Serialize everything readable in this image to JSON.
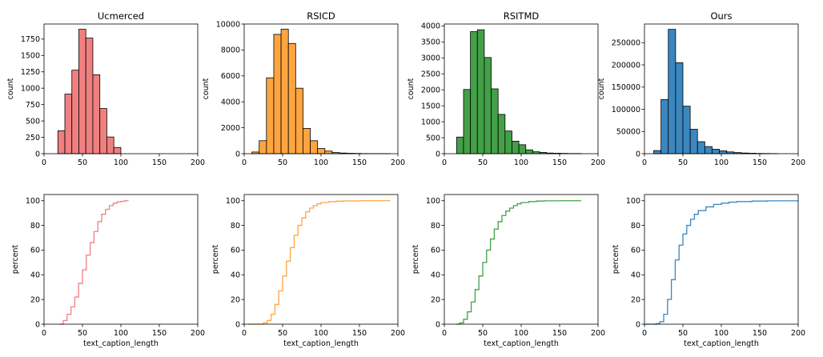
{
  "chart_data": [
    {
      "type": "histogram",
      "title": "Ucmerced",
      "xlabel": "",
      "ylabel": "count",
      "color": "#F08080",
      "xlim": [
        0,
        200
      ],
      "ylim": [
        0,
        1980
      ],
      "xticks": [
        0,
        50,
        100,
        150,
        200
      ],
      "yticks": [
        0,
        250,
        500,
        750,
        1000,
        1250,
        1500,
        1750
      ],
      "ytick_labels": [
        "0",
        "250",
        "500",
        "750",
        "1000",
        "1250",
        "1500",
        "1750"
      ],
      "bins": [
        {
          "x0": 18,
          "x1": 27.1,
          "count": 350
        },
        {
          "x0": 27.1,
          "x1": 36.2,
          "count": 910
        },
        {
          "x0": 36.2,
          "x1": 45.3,
          "count": 1275
        },
        {
          "x0": 45.3,
          "x1": 54.4,
          "count": 1900
        },
        {
          "x0": 54.4,
          "x1": 63.5,
          "count": 1765
        },
        {
          "x0": 63.5,
          "x1": 72.6,
          "count": 1205
        },
        {
          "x0": 72.6,
          "x1": 81.7,
          "count": 690
        },
        {
          "x0": 81.7,
          "x1": 90.8,
          "count": 255
        },
        {
          "x0": 90.8,
          "x1": 99.9,
          "count": 95
        }
      ]
    },
    {
      "type": "histogram",
      "title": "RSICD",
      "xlabel": "",
      "ylabel": "count",
      "color": "#FFA540",
      "xlim": [
        0,
        200
      ],
      "ylim": [
        0,
        10000
      ],
      "xticks": [
        0,
        50,
        100,
        150,
        200
      ],
      "yticks": [
        0,
        2000,
        4000,
        6000,
        8000,
        10000
      ],
      "ytick_labels": [
        "0",
        "2000",
        "4000",
        "6000",
        "8000",
        "10000"
      ],
      "bins": [
        {
          "x0": 10,
          "x1": 19.5,
          "count": 130
        },
        {
          "x0": 19.5,
          "x1": 29,
          "count": 1000
        },
        {
          "x0": 29,
          "x1": 38.5,
          "count": 5850
        },
        {
          "x0": 38.5,
          "x1": 48,
          "count": 9200
        },
        {
          "x0": 48,
          "x1": 57.5,
          "count": 9600
        },
        {
          "x0": 57.5,
          "x1": 67,
          "count": 8500
        },
        {
          "x0": 67,
          "x1": 76.5,
          "count": 5050
        },
        {
          "x0": 76.5,
          "x1": 86,
          "count": 1950
        },
        {
          "x0": 86,
          "x1": 95.5,
          "count": 1000
        },
        {
          "x0": 95.5,
          "x1": 105,
          "count": 400
        },
        {
          "x0": 105,
          "x1": 114.5,
          "count": 200
        },
        {
          "x0": 114.5,
          "x1": 124,
          "count": 90
        },
        {
          "x0": 124,
          "x1": 133.5,
          "count": 50
        },
        {
          "x0": 133.5,
          "x1": 143,
          "count": 30
        },
        {
          "x0": 143,
          "x1": 152.5,
          "count": 20
        },
        {
          "x0": 152.5,
          "x1": 162,
          "count": 10
        },
        {
          "x0": 162,
          "x1": 171.5,
          "count": 5
        },
        {
          "x0": 171.5,
          "x1": 181,
          "count": 5
        },
        {
          "x0": 181,
          "x1": 190.5,
          "count": 5
        }
      ]
    },
    {
      "type": "histogram",
      "title": "RSITMD",
      "xlabel": "",
      "ylabel": "count",
      "color": "#43A047",
      "xlim": [
        0,
        200
      ],
      "ylim": [
        0,
        4060
      ],
      "xticks": [
        0,
        50,
        100,
        150,
        200
      ],
      "yticks": [
        0,
        500,
        1000,
        1500,
        2000,
        2500,
        3000,
        3500,
        4000
      ],
      "ytick_labels": [
        "0",
        "500",
        "1000",
        "1500",
        "2000",
        "2500",
        "3000",
        "3500",
        "4000"
      ],
      "bins": [
        {
          "x0": 16,
          "x1": 25,
          "count": 520
        },
        {
          "x0": 25,
          "x1": 34,
          "count": 2010
        },
        {
          "x0": 34,
          "x1": 43,
          "count": 3820
        },
        {
          "x0": 43,
          "x1": 52,
          "count": 3880
        },
        {
          "x0": 52,
          "x1": 61,
          "count": 3010
        },
        {
          "x0": 61,
          "x1": 70,
          "count": 2030
        },
        {
          "x0": 70,
          "x1": 79,
          "count": 1230
        },
        {
          "x0": 79,
          "x1": 88,
          "count": 710
        },
        {
          "x0": 88,
          "x1": 97,
          "count": 390
        },
        {
          "x0": 97,
          "x1": 106,
          "count": 280
        },
        {
          "x0": 106,
          "x1": 115,
          "count": 120
        },
        {
          "x0": 115,
          "x1": 124,
          "count": 60
        },
        {
          "x0": 124,
          "x1": 133,
          "count": 40
        },
        {
          "x0": 133,
          "x1": 142,
          "count": 20
        },
        {
          "x0": 142,
          "x1": 151,
          "count": 15
        },
        {
          "x0": 151,
          "x1": 160,
          "count": 10
        },
        {
          "x0": 160,
          "x1": 169,
          "count": 5
        },
        {
          "x0": 169,
          "x1": 178,
          "count": 5
        }
      ]
    },
    {
      "type": "histogram",
      "title": "Ours",
      "xlabel": "",
      "ylabel": "count",
      "color": "#3B87C0",
      "xlim": [
        0,
        200
      ],
      "ylim": [
        0,
        292000
      ],
      "xticks": [
        0,
        50,
        100,
        150,
        200
      ],
      "yticks": [
        0,
        50000,
        100000,
        150000,
        200000,
        250000
      ],
      "ytick_labels": [
        "0",
        "50000",
        "100000",
        "150000",
        "200000",
        "250000"
      ],
      "bins": [
        {
          "x0": 12,
          "x1": 21.5,
          "count": 7000
        },
        {
          "x0": 21.5,
          "x1": 31,
          "count": 122000
        },
        {
          "x0": 31,
          "x1": 40.5,
          "count": 280000
        },
        {
          "x0": 40.5,
          "x1": 50,
          "count": 205000
        },
        {
          "x0": 50,
          "x1": 59.5,
          "count": 107000
        },
        {
          "x0": 59.5,
          "x1": 69,
          "count": 55000
        },
        {
          "x0": 69,
          "x1": 78.5,
          "count": 27000
        },
        {
          "x0": 78.5,
          "x1": 88,
          "count": 16000
        },
        {
          "x0": 88,
          "x1": 97.5,
          "count": 10000
        },
        {
          "x0": 97.5,
          "x1": 107,
          "count": 6500
        },
        {
          "x0": 107,
          "x1": 116.5,
          "count": 4000
        },
        {
          "x0": 116.5,
          "x1": 126,
          "count": 2500
        },
        {
          "x0": 126,
          "x1": 135.5,
          "count": 1500
        },
        {
          "x0": 135.5,
          "x1": 145,
          "count": 1000
        },
        {
          "x0": 145,
          "x1": 154.5,
          "count": 600
        },
        {
          "x0": 154.5,
          "x1": 164,
          "count": 400
        },
        {
          "x0": 164,
          "x1": 173.5,
          "count": 200
        }
      ]
    },
    {
      "type": "line",
      "subtype": "cumulative-step",
      "title": "",
      "xlabel": "text_caption_length",
      "ylabel": "percent",
      "color": "#F08080",
      "xlim": [
        0,
        200
      ],
      "ylim": [
        0,
        105
      ],
      "xticks": [
        0,
        50,
        100,
        150,
        200
      ],
      "yticks": [
        0,
        20,
        40,
        60,
        80,
        100
      ],
      "ytick_labels": [
        "0",
        "20",
        "40",
        "60",
        "80",
        "100"
      ],
      "x": [
        20,
        25,
        30,
        35,
        40,
        45,
        50,
        55,
        60,
        65,
        70,
        75,
        80,
        85,
        90,
        95,
        100,
        105,
        110
      ],
      "y": [
        0,
        3,
        8,
        14,
        22,
        33,
        44,
        56,
        66,
        75,
        83,
        89,
        93,
        96,
        98,
        99,
        99.5,
        100,
        100
      ]
    },
    {
      "type": "line",
      "subtype": "cumulative-step",
      "title": "",
      "xlabel": "text_caption_length",
      "ylabel": "percent",
      "color": "#FFA540",
      "xlim": [
        0,
        200
      ],
      "ylim": [
        0,
        105
      ],
      "xticks": [
        0,
        50,
        100,
        150,
        200
      ],
      "yticks": [
        0,
        20,
        40,
        60,
        80,
        100
      ],
      "ytick_labels": [
        "0",
        "20",
        "40",
        "60",
        "80",
        "100"
      ],
      "x": [
        5,
        20,
        25,
        30,
        35,
        40,
        45,
        50,
        55,
        60,
        65,
        70,
        75,
        80,
        85,
        90,
        95,
        100,
        110,
        120,
        130,
        150,
        190
      ],
      "y": [
        0,
        0,
        1,
        3,
        8,
        16,
        27,
        39,
        51,
        62,
        72,
        80,
        86,
        91,
        94,
        96,
        97.5,
        98.5,
        99.2,
        99.6,
        99.8,
        100,
        100
      ]
    },
    {
      "type": "line",
      "subtype": "cumulative-step",
      "title": "",
      "xlabel": "text_caption_length",
      "ylabel": "percent",
      "color": "#43A047",
      "xlim": [
        0,
        200
      ],
      "ylim": [
        0,
        105
      ],
      "xticks": [
        0,
        50,
        100,
        150,
        200
      ],
      "yticks": [
        0,
        20,
        40,
        60,
        80,
        100
      ],
      "ytick_labels": [
        "0",
        "20",
        "40",
        "60",
        "80",
        "100"
      ],
      "x": [
        15,
        20,
        25,
        30,
        35,
        40,
        45,
        50,
        55,
        60,
        65,
        70,
        75,
        80,
        85,
        90,
        95,
        100,
        110,
        120,
        130,
        150,
        178
      ],
      "y": [
        0,
        1,
        4,
        10,
        18,
        28,
        39,
        50,
        60,
        69,
        77,
        83,
        88,
        91.5,
        94,
        96,
        97.5,
        98.5,
        99.3,
        99.7,
        99.9,
        100,
        100
      ]
    },
    {
      "type": "line",
      "subtype": "cumulative-step",
      "title": "",
      "xlabel": "text_caption_length",
      "ylabel": "percent",
      "color": "#3B87C0",
      "xlim": [
        0,
        200
      ],
      "ylim": [
        0,
        105
      ],
      "xticks": [
        0,
        50,
        100,
        150,
        200
      ],
      "yticks": [
        0,
        20,
        40,
        60,
        80,
        100
      ],
      "ytick_labels": [
        "0",
        "20",
        "40",
        "60",
        "80",
        "100"
      ],
      "x": [
        0,
        10,
        15,
        20,
        25,
        30,
        35,
        40,
        45,
        50,
        55,
        60,
        65,
        70,
        80,
        90,
        100,
        110,
        120,
        140,
        160,
        200
      ],
      "y": [
        0,
        0,
        0.5,
        2,
        8,
        20,
        36,
        52,
        64,
        73,
        80,
        85,
        89,
        92,
        95,
        97,
        98,
        98.8,
        99.3,
        99.7,
        99.9,
        100
      ]
    }
  ]
}
